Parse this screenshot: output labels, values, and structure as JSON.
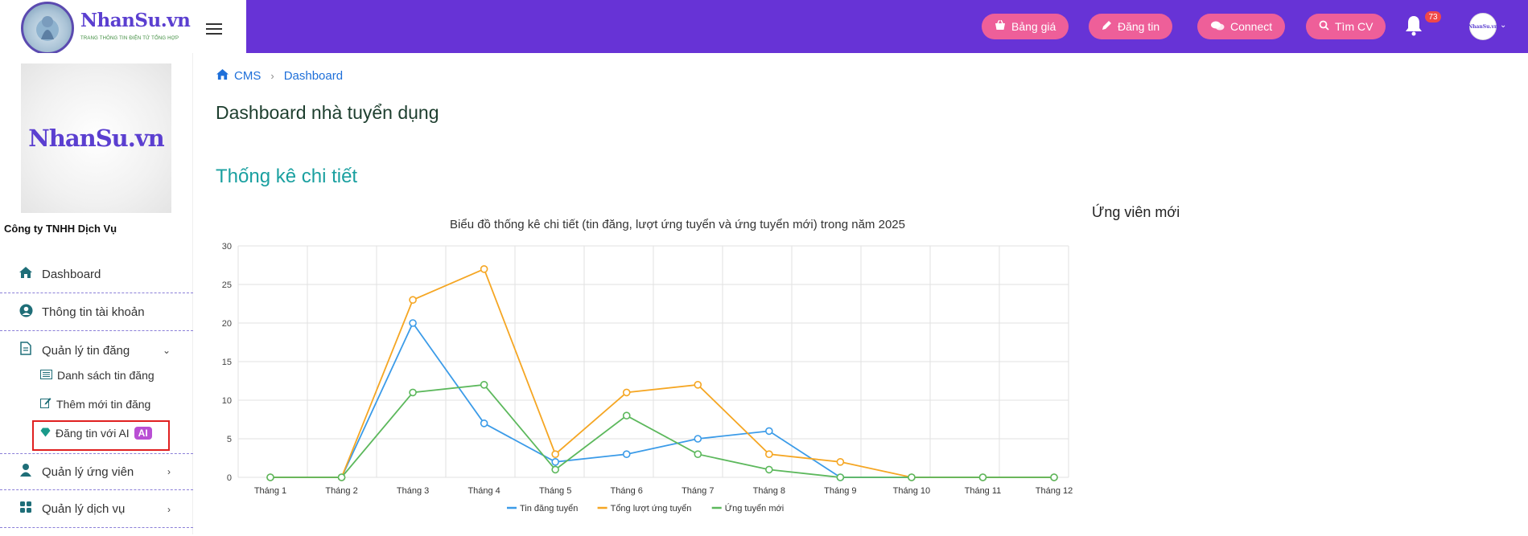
{
  "brand": {
    "name": "NhanSu.vn",
    "tagline": "TRANG THÔNG TIN ĐIỆN TỬ TỔNG HỢP",
    "ring_top": "NhanSu",
    "ring_bottom": "Nhansu"
  },
  "topbar": {
    "buttons": [
      {
        "label": "Bảng giá",
        "icon": "basket-icon"
      },
      {
        "label": "Đăng tin",
        "icon": "pencil-icon"
      },
      {
        "label": "Connect",
        "icon": "chat-icon"
      },
      {
        "label": "Tìm CV",
        "icon": "search-icon"
      }
    ],
    "notification_count": "73",
    "avatar_text": "NhanSu.vn",
    "accent_color": "#6733d6",
    "pill_color": "#ee5f99"
  },
  "sidebar": {
    "company_logo_text": "NhanSu.vn",
    "company_name": "Công ty TNHH Dịch Vụ",
    "items": [
      {
        "label": "Dashboard",
        "icon": "home-icon"
      },
      {
        "label": "Thông tin tài khoản",
        "icon": "user-circle-icon"
      },
      {
        "label": "Quản lý tin đăng",
        "icon": "document-icon",
        "expanded": true
      },
      {
        "label": "Quản lý ứng viên",
        "icon": "person-icon"
      },
      {
        "label": "Quản lý dịch vụ",
        "icon": "grid-icon"
      }
    ],
    "sub_items": [
      {
        "label": "Danh sách tin đăng",
        "icon": "list-icon"
      },
      {
        "label": "Thêm mới tin đăng",
        "icon": "edit-icon"
      },
      {
        "label": "Đăng tin với AI",
        "icon": "diamond-icon",
        "badge": "AI"
      }
    ]
  },
  "breadcrumb": {
    "home": "CMS",
    "current": "Dashboard"
  },
  "page_title": "Dashboard nhà tuyển dụng",
  "section_title": "Thống kê chi tiết",
  "candidates_title": "Ứng viên mới",
  "chart_data": {
    "type": "line",
    "title": "Biểu đồ thống kê chi tiết (tin đăng, lượt ứng tuyển và ứng tuyển mới) trong năm 2025",
    "categories": [
      "Tháng 1",
      "Tháng 2",
      "Tháng 3",
      "Tháng 4",
      "Tháng 5",
      "Tháng 6",
      "Tháng 7",
      "Tháng 8",
      "Tháng 9",
      "Tháng 10",
      "Tháng 11",
      "Tháng 12"
    ],
    "ylim": [
      0,
      30
    ],
    "yticks": [
      0,
      5,
      10,
      15,
      20,
      25,
      30
    ],
    "grid": true,
    "legend_position": "bottom",
    "series": [
      {
        "name": "Tin đăng tuyển",
        "color": "#3b9be8",
        "values": [
          0,
          0,
          20,
          7,
          2,
          3,
          5,
          6,
          0,
          0,
          0,
          0
        ]
      },
      {
        "name": "Tổng lượt ứng tuyển",
        "color": "#f5a623",
        "values": [
          0,
          0,
          23,
          27,
          3,
          11,
          12,
          3,
          2,
          0,
          0,
          0
        ]
      },
      {
        "name": "Ứng tuyển mới",
        "color": "#5cb85c",
        "values": [
          0,
          0,
          11,
          12,
          1,
          8,
          3,
          1,
          0,
          0,
          0,
          0
        ]
      }
    ]
  }
}
